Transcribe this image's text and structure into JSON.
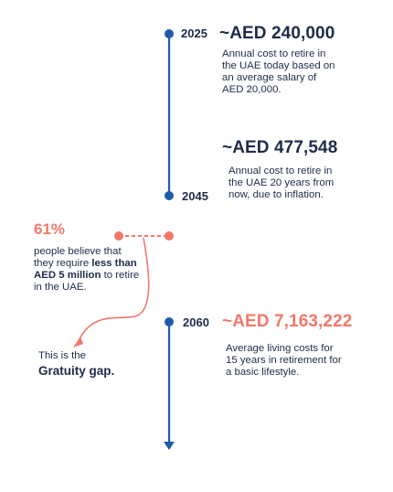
{
  "colors": {
    "navy": "#1e5aa8",
    "text": "#1e2b4a",
    "coral": "#f2786a"
  },
  "milestones": [
    {
      "year": "2025",
      "amount": "~AED 240,000",
      "desc": [
        "Annual cost to retire in",
        "the UAE today based on",
        "an average salary of",
        "AED 20,000."
      ]
    },
    {
      "year": "2045",
      "amount": "~AED 477,548",
      "desc": [
        "Annual cost to retire in",
        "the UAE 20 years from",
        "now, due to inflation."
      ]
    },
    {
      "year": "2060",
      "amount": "~AED 7,163,222",
      "desc": [
        "Average living costs for",
        "15 years in retirement for",
        "a basic lifestyle."
      ]
    }
  ],
  "belief": {
    "percent": "61%",
    "line1": "people believe that",
    "line2_pre": "they require ",
    "line2_bold": "less than",
    "line3_bold": "AED 5 million",
    "line3_post": " to retire",
    "line4": "in the UAE."
  },
  "gap": {
    "line1": "This is the",
    "line2": "Gratuity gap."
  }
}
